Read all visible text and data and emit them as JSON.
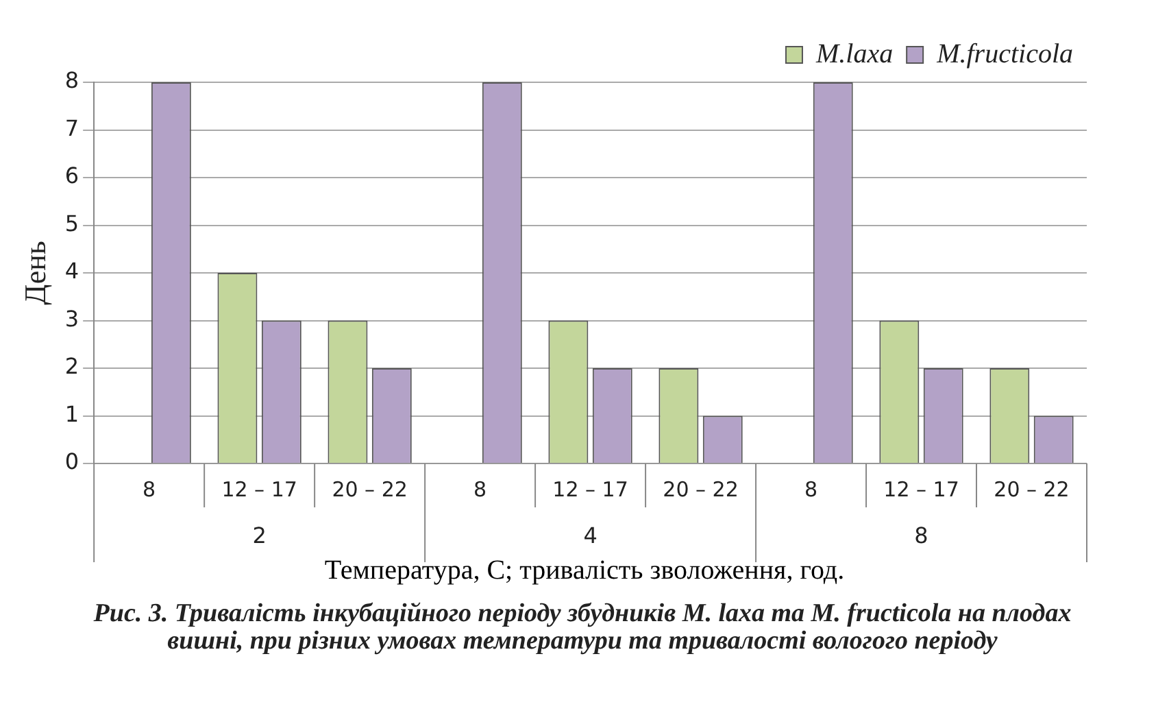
{
  "chart_data": {
    "type": "bar",
    "xlabel": "Температура, С; тривалість зволоження, год.",
    "ylabel": "День",
    "categories": [
      "8",
      "12 – 17",
      "20 – 22",
      "8",
      "12 – 17",
      "20 – 22",
      "8",
      "12 – 17",
      "20 – 22"
    ],
    "series": [
      {
        "name": "M.laxa",
        "color": "#c3d69b",
        "values": [
          0,
          4,
          3,
          0,
          3,
          2,
          0,
          3,
          2
        ]
      },
      {
        "name": "M.fructicola",
        "color": "#b3a2c7",
        "values": [
          8,
          3,
          2,
          8,
          2,
          1,
          8,
          2,
          1
        ]
      }
    ],
    "ylim": [
      0,
      8
    ],
    "yticks": [
      0,
      1,
      2,
      3,
      4,
      5,
      6,
      7,
      8
    ],
    "grid": "y",
    "legend": "top right",
    "annotations": [
      "2",
      "4",
      "8",
      "Рис. 3. Тривалість інкубаційного періоду збудників M. laxa та M. fructicola на плодах вишні, при різних умовах температури та тривалості вологого періоду"
    ]
  }
}
